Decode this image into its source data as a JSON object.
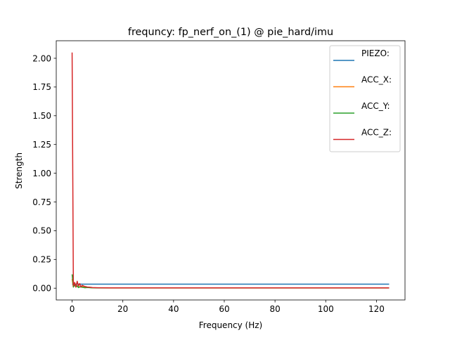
{
  "chart_data": {
    "type": "line",
    "title": "frequncy: fp_nerf_on_(1) @ pie_hard/imu",
    "xlabel": "Frequency (Hz)",
    "ylabel": "Strength",
    "xlim": [
      -6.25,
      131.25
    ],
    "ylim": [
      -0.1025,
      2.1525
    ],
    "xticks": [
      0,
      20,
      40,
      60,
      80,
      100,
      120
    ],
    "xtick_labels": [
      "0",
      "20",
      "40",
      "60",
      "80",
      "100",
      "120"
    ],
    "yticks": [
      0.0,
      0.25,
      0.5,
      0.75,
      1.0,
      1.25,
      1.5,
      1.75,
      2.0
    ],
    "ytick_labels": [
      "0.00",
      "0.25",
      "0.50",
      "0.75",
      "1.00",
      "1.25",
      "1.50",
      "1.75",
      "2.00"
    ],
    "grid": false,
    "legend_position": "top-right",
    "series": [
      {
        "name": "PIEZO:",
        "color": "#1f77b4",
        "x": [
          0,
          125
        ],
        "y": [
          0.035,
          0.035
        ]
      },
      {
        "name": "ACC_X:",
        "color": "#ff7f0e",
        "x": [
          0,
          0.5,
          1,
          1.5,
          2,
          3,
          4,
          5,
          6,
          8,
          10,
          15,
          20,
          40,
          60,
          80,
          100,
          125
        ],
        "y": [
          0.08,
          0.01,
          0.03,
          0.01,
          0.02,
          0.01,
          0.015,
          0.005,
          0.008,
          0.004,
          0.003,
          0.002,
          0.002,
          0.002,
          0.002,
          0.002,
          0.002,
          0.002
        ]
      },
      {
        "name": "ACC_Y:",
        "color": "#2ca02c",
        "x": [
          0,
          0.5,
          1,
          1.5,
          2,
          2.5,
          3,
          4,
          5,
          6,
          8,
          10,
          15,
          20,
          40,
          60,
          80,
          100,
          125
        ],
        "y": [
          0.12,
          0.01,
          0.03,
          0.01,
          0.02,
          0.005,
          0.012,
          0.008,
          0.004,
          0.006,
          0.003,
          0.002,
          0.002,
          0.002,
          0.002,
          0.002,
          0.002,
          0.002,
          0.002
        ]
      },
      {
        "name": "ACC_Z:",
        "color": "#d62728",
        "x": [
          0,
          0.5,
          1,
          1.5,
          2,
          2.5,
          3,
          3.5,
          4,
          5,
          6,
          7,
          8,
          10,
          15,
          20,
          40,
          60,
          80,
          100,
          125
        ],
        "y": [
          2.05,
          0.02,
          0.05,
          0.01,
          0.06,
          0.02,
          0.04,
          0.01,
          0.025,
          0.015,
          0.01,
          0.008,
          0.005,
          0.004,
          0.003,
          0.003,
          0.003,
          0.003,
          0.003,
          0.003,
          0.003
        ]
      }
    ]
  }
}
